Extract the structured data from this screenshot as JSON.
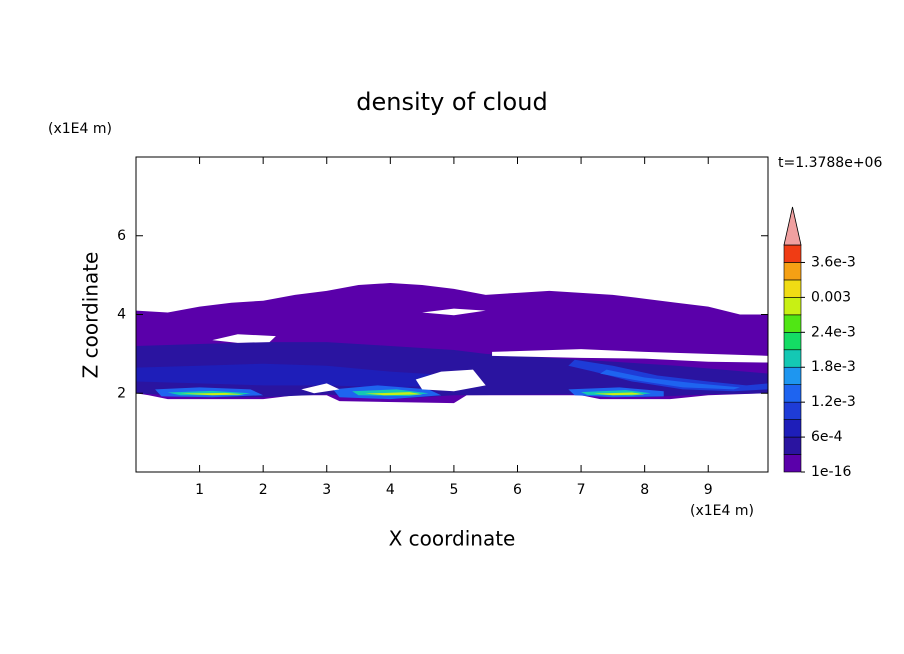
{
  "chart_data": {
    "type": "contourf",
    "title": "density of cloud",
    "xlabel": "X coordinate",
    "ylabel": "Z coordinate",
    "xunit": "(x1E4 m)",
    "yunit": "(x1E4 m)",
    "time_label": "t=1.3788e+06",
    "xlim": [
      0,
      9.94
    ],
    "ylim": [
      0,
      8
    ],
    "xticks": [
      1,
      2,
      3,
      4,
      5,
      6,
      7,
      8,
      9
    ],
    "yticks": [
      2,
      4,
      6
    ],
    "colorbar": {
      "levels": [
        1e-16,
        0.0003,
        0.0006,
        0.0009,
        0.0012,
        0.0015,
        0.0018,
        0.0021,
        0.0024,
        0.0027,
        0.003,
        0.0033,
        0.0036,
        0.0039
      ],
      "colors": [
        "#5a00aa",
        "#2a14a0",
        "#1e1eb9",
        "#1e3cd7",
        "#1e64f0",
        "#1e96f0",
        "#14c8b4",
        "#14dc64",
        "#50e614",
        "#c8f014",
        "#f0dc14",
        "#f5a014",
        "#f03c14"
      ],
      "extend_color": "#f0a0a0",
      "ticks": [
        {
          "value": 1e-16,
          "label": "1e-16"
        },
        {
          "value": 0.0006,
          "label": "6e-4"
        },
        {
          "value": 0.0012,
          "label": "1.2e-3"
        },
        {
          "value": 0.0018,
          "label": "1.8e-3"
        },
        {
          "value": 0.0024,
          "label": "2.4e-3"
        },
        0.003,
        {
          "value": 0.0036,
          "label": "3.6e-3"
        }
      ]
    },
    "contours": [
      {
        "level": 1e-16,
        "points": [
          [
            0,
            4.1
          ],
          [
            0.5,
            4.05
          ],
          [
            1,
            4.2
          ],
          [
            1.5,
            4.3
          ],
          [
            2,
            4.35
          ],
          [
            2.5,
            4.5
          ],
          [
            3,
            4.6
          ],
          [
            3.5,
            4.75
          ],
          [
            4,
            4.8
          ],
          [
            4.5,
            4.75
          ],
          [
            5,
            4.65
          ],
          [
            5.5,
            4.5
          ],
          [
            6,
            4.55
          ],
          [
            6.5,
            4.6
          ],
          [
            7,
            4.55
          ],
          [
            7.5,
            4.5
          ],
          [
            8,
            4.4
          ],
          [
            8.5,
            4.3
          ],
          [
            9,
            4.2
          ],
          [
            9.5,
            4.0
          ],
          [
            9.94,
            4.0
          ],
          [
            9.94,
            2.0
          ],
          [
            9,
            1.95
          ],
          [
            8.4,
            1.85
          ],
          [
            7.3,
            1.85
          ],
          [
            7,
            1.95
          ],
          [
            6,
            1.95
          ],
          [
            5.2,
            1.95
          ],
          [
            5,
            1.75
          ],
          [
            3.2,
            1.8
          ],
          [
            3,
            1.95
          ],
          [
            2.5,
            1.95
          ],
          [
            2,
            1.85
          ],
          [
            0.5,
            1.85
          ],
          [
            0.2,
            1.95
          ],
          [
            0,
            2.0
          ]
        ]
      },
      {
        "level": 0.0003,
        "points": [
          [
            0,
            3.2
          ],
          [
            1,
            3.25
          ],
          [
            2,
            3.3
          ],
          [
            3,
            3.3
          ],
          [
            4,
            3.2
          ],
          [
            5,
            3.1
          ],
          [
            5.5,
            3.0
          ],
          [
            7,
            2.85
          ],
          [
            8.5,
            2.7
          ],
          [
            9.94,
            2.5
          ],
          [
            9.94,
            2.0
          ],
          [
            9,
            1.97
          ],
          [
            8,
            1.9
          ],
          [
            7,
            1.97
          ],
          [
            5,
            1.95
          ],
          [
            4,
            1.85
          ],
          [
            3,
            1.97
          ],
          [
            2,
            1.9
          ],
          [
            1,
            1.9
          ],
          [
            0,
            2.0
          ]
        ]
      },
      {
        "level": 0.0006,
        "points": [
          [
            0,
            2.65
          ],
          [
            1,
            2.7
          ],
          [
            2,
            2.75
          ],
          [
            3,
            2.7
          ],
          [
            4,
            2.55
          ],
          [
            5,
            2.45
          ],
          [
            5,
            2.2
          ],
          [
            4,
            2.15
          ],
          [
            3,
            2.2
          ],
          [
            2,
            2.2
          ],
          [
            1,
            2.25
          ],
          [
            0,
            2.3
          ]
        ]
      },
      {
        "level": 0.0009,
        "points": [
          [
            6.9,
            2.85
          ],
          [
            7.5,
            2.7
          ],
          [
            8.2,
            2.45
          ],
          [
            9,
            2.3
          ],
          [
            9.6,
            2.2
          ],
          [
            9.94,
            2.25
          ],
          [
            9.94,
            2.1
          ],
          [
            9.4,
            2.05
          ],
          [
            8.6,
            2.1
          ],
          [
            7.8,
            2.3
          ],
          [
            7.2,
            2.55
          ],
          [
            6.8,
            2.7
          ]
        ]
      },
      {
        "level": 0.0012,
        "points": [
          [
            7.4,
            2.6
          ],
          [
            8,
            2.4
          ],
          [
            8.8,
            2.25
          ],
          [
            9.5,
            2.15
          ],
          [
            9.4,
            2.1
          ],
          [
            8.6,
            2.15
          ],
          [
            7.9,
            2.32
          ],
          [
            7.3,
            2.5
          ]
        ]
      },
      {
        "level": 0.0012,
        "points": [
          [
            0.3,
            2.1
          ],
          [
            1,
            2.15
          ],
          [
            1.8,
            2.1
          ],
          [
            2.0,
            1.95
          ],
          [
            1.2,
            1.9
          ],
          [
            0.4,
            1.92
          ]
        ]
      },
      {
        "level": 0.0012,
        "points": [
          [
            3.1,
            2.1
          ],
          [
            3.8,
            2.2
          ],
          [
            4.6,
            2.1
          ],
          [
            4.8,
            1.95
          ],
          [
            4,
            1.85
          ],
          [
            3.2,
            1.9
          ]
        ]
      },
      {
        "level": 0.0012,
        "points": [
          [
            6.8,
            2.1
          ],
          [
            7.6,
            2.15
          ],
          [
            8.3,
            2.05
          ],
          [
            8.3,
            1.92
          ],
          [
            7.5,
            1.9
          ],
          [
            6.9,
            1.95
          ]
        ]
      },
      {
        "level": 0.0018,
        "points": [
          [
            0.5,
            2.02
          ],
          [
            1.2,
            2.06
          ],
          [
            1.8,
            2.0
          ],
          [
            1.6,
            1.95
          ],
          [
            0.7,
            1.95
          ]
        ]
      },
      {
        "level": 0.0018,
        "points": [
          [
            3.4,
            2.05
          ],
          [
            4.1,
            2.1
          ],
          [
            4.6,
            2.0
          ],
          [
            4.3,
            1.93
          ],
          [
            3.5,
            1.95
          ]
        ]
      },
      {
        "level": 0.0018,
        "points": [
          [
            7.0,
            2.03
          ],
          [
            7.7,
            2.08
          ],
          [
            8.1,
            2.0
          ],
          [
            7.8,
            1.94
          ],
          [
            7.1,
            1.96
          ]
        ]
      },
      {
        "level": 0.0027,
        "points": [
          [
            0.7,
            1.99
          ],
          [
            1.4,
            2.01
          ],
          [
            1.7,
            1.97
          ],
          [
            1.2,
            1.95
          ]
        ]
      },
      {
        "level": 0.0027,
        "points": [
          [
            3.6,
            1.99
          ],
          [
            4.3,
            2.03
          ],
          [
            4.5,
            1.97
          ],
          [
            3.9,
            1.95
          ]
        ]
      },
      {
        "level": 0.0027,
        "points": [
          [
            7.2,
            1.99
          ],
          [
            7.8,
            2.02
          ],
          [
            8.0,
            1.97
          ],
          [
            7.5,
            1.95
          ]
        ]
      },
      {
        "level": null,
        "points": [
          [
            1.2,
            3.35
          ],
          [
            1.6,
            3.5
          ],
          [
            2.2,
            3.45
          ],
          [
            2.1,
            3.3
          ],
          [
            1.6,
            3.28
          ]
        ]
      },
      {
        "level": null,
        "points": [
          [
            4.5,
            4.05
          ],
          [
            5.0,
            4.15
          ],
          [
            5.5,
            4.1
          ],
          [
            5.0,
            3.98
          ]
        ]
      },
      {
        "level": null,
        "points": [
          [
            5.6,
            3.05
          ],
          [
            7,
            3.12
          ],
          [
            8,
            3.05
          ],
          [
            9.94,
            2.95
          ],
          [
            9.94,
            2.78
          ],
          [
            9,
            2.8
          ],
          [
            8,
            2.88
          ],
          [
            7,
            2.9
          ],
          [
            5.6,
            2.95
          ]
        ]
      },
      {
        "level": null,
        "points": [
          [
            4.4,
            2.35
          ],
          [
            4.8,
            2.55
          ],
          [
            5.3,
            2.6
          ],
          [
            5.5,
            2.2
          ],
          [
            5.0,
            2.05
          ],
          [
            4.5,
            2.1
          ]
        ]
      },
      {
        "level": null,
        "points": [
          [
            2.6,
            2.1
          ],
          [
            3.0,
            2.25
          ],
          [
            3.2,
            2.1
          ],
          [
            2.8,
            2.0
          ]
        ]
      }
    ]
  }
}
